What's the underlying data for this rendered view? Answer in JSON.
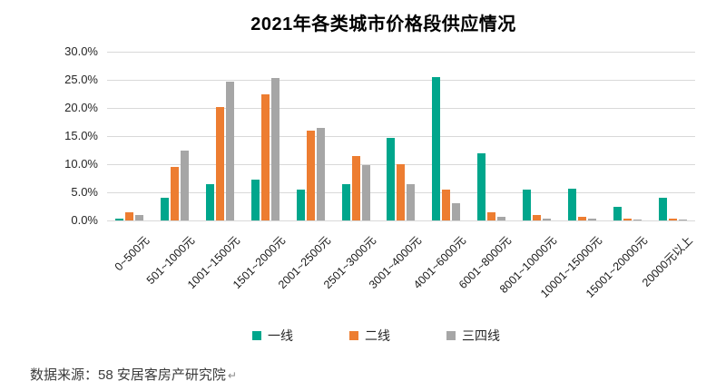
{
  "source": {
    "text": "数据来源：58 安居客房产研究院",
    "mark": "↵"
  },
  "colors": {
    "gridline": "#d9d9d9",
    "background": "#ffffff"
  },
  "chart_data": {
    "type": "bar",
    "title": "2021年各类城市价格段供应情况",
    "categories": [
      "0~500元",
      "501~1000元",
      "1001~1500元",
      "1501~2000元",
      "2001~2500元",
      "2501~3000元",
      "3001~4000元",
      "4001~6000元",
      "6001~8000元",
      "8001~10000元",
      "10001~15000元",
      "15001~20000元",
      "20000元以上"
    ],
    "series": [
      {
        "name": "一线",
        "color": "#00A68C",
        "values": [
          0.4,
          4.1,
          6.4,
          7.3,
          5.5,
          6.5,
          14.6,
          25.5,
          11.9,
          5.5,
          5.6,
          2.4,
          4.0
        ]
      },
      {
        "name": "二线",
        "color": "#ED7D31",
        "values": [
          1.5,
          9.5,
          20.1,
          22.4,
          15.9,
          11.4,
          10.0,
          5.5,
          1.4,
          0.9,
          0.7,
          0.4,
          0.4
        ]
      },
      {
        "name": "三四线",
        "color": "#A6A6A6",
        "values": [
          0.9,
          12.4,
          24.6,
          25.3,
          16.5,
          9.8,
          6.4,
          3.0,
          0.6,
          0.3,
          0.4,
          0.2,
          0.2
        ]
      }
    ],
    "y_ticks": [
      "30.0%",
      "25.0%",
      "20.0%",
      "15.0%",
      "10.0%",
      "5.0%",
      "0.0%"
    ],
    "ylim": [
      0,
      30
    ],
    "xlabel": "",
    "ylabel": "",
    "grid": true,
    "legend_position": "bottom"
  }
}
